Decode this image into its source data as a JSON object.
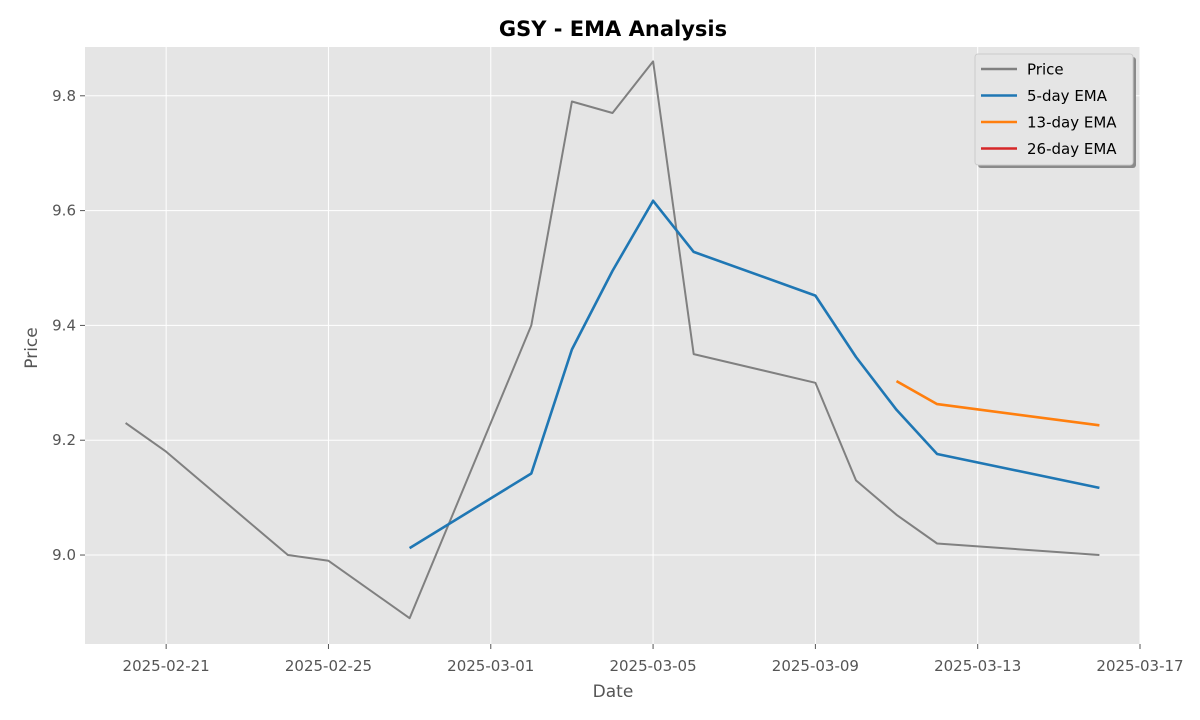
{
  "chart_data": {
    "type": "line",
    "title": "GSY - EMA Analysis",
    "xlabel": "Date",
    "ylabel": "Price",
    "x_axis_type": "date",
    "xlim": [
      "2025-02-19",
      "2025-03-17"
    ],
    "ylim": [
      8.845,
      9.885
    ],
    "x_ticks": [
      "2025-02-21",
      "2025-02-25",
      "2025-03-01",
      "2025-03-05",
      "2025-03-09",
      "2025-03-13",
      "2025-03-17"
    ],
    "y_ticks": [
      9.0,
      9.2,
      9.4,
      9.6,
      9.8
    ],
    "y_tick_labels": [
      "9.0",
      "9.2",
      "9.4",
      "9.6",
      "9.8"
    ],
    "grid": true,
    "legend_position": "top-right",
    "background": "#e5e5e5",
    "series": [
      {
        "name": "Price",
        "color": "#808080",
        "points": [
          {
            "x": "2025-02-20",
            "y": 9.23
          },
          {
            "x": "2025-02-21",
            "y": 9.18
          },
          {
            "x": "2025-02-22",
            "y": 9.12
          },
          {
            "x": "2025-02-23",
            "y": 9.06
          },
          {
            "x": "2025-02-24",
            "y": 9.0
          },
          {
            "x": "2025-02-25",
            "y": 8.99
          },
          {
            "x": "2025-02-27",
            "y": 8.89
          },
          {
            "x": "2025-03-02",
            "y": 9.4
          },
          {
            "x": "2025-03-03",
            "y": 9.79
          },
          {
            "x": "2025-03-04",
            "y": 9.77
          },
          {
            "x": "2025-03-05",
            "y": 9.86
          },
          {
            "x": "2025-03-06",
            "y": 9.35
          },
          {
            "x": "2025-03-09",
            "y": 9.3
          },
          {
            "x": "2025-03-10",
            "y": 9.13
          },
          {
            "x": "2025-03-11",
            "y": 9.07
          },
          {
            "x": "2025-03-12",
            "y": 9.02
          },
          {
            "x": "2025-03-16",
            "y": 9.0
          }
        ]
      },
      {
        "name": "5-day EMA",
        "color": "#1f77b4",
        "points": [
          {
            "x": "2025-02-27",
            "y": 9.012
          },
          {
            "x": "2025-03-02",
            "y": 9.142
          },
          {
            "x": "2025-03-03",
            "y": 9.358
          },
          {
            "x": "2025-03-04",
            "y": 9.495
          },
          {
            "x": "2025-03-05",
            "y": 9.617
          },
          {
            "x": "2025-03-06",
            "y": 9.528
          },
          {
            "x": "2025-03-09",
            "y": 9.452
          },
          {
            "x": "2025-03-10",
            "y": 9.345
          },
          {
            "x": "2025-03-11",
            "y": 9.253
          },
          {
            "x": "2025-03-12",
            "y": 9.176
          },
          {
            "x": "2025-03-16",
            "y": 9.117
          }
        ]
      },
      {
        "name": "13-day EMA",
        "color": "#ff7f0e",
        "points": [
          {
            "x": "2025-03-11",
            "y": 9.303
          },
          {
            "x": "2025-03-12",
            "y": 9.263
          },
          {
            "x": "2025-03-16",
            "y": 9.226
          }
        ]
      },
      {
        "name": "26-day EMA",
        "color": "#d62728",
        "points": []
      }
    ]
  }
}
